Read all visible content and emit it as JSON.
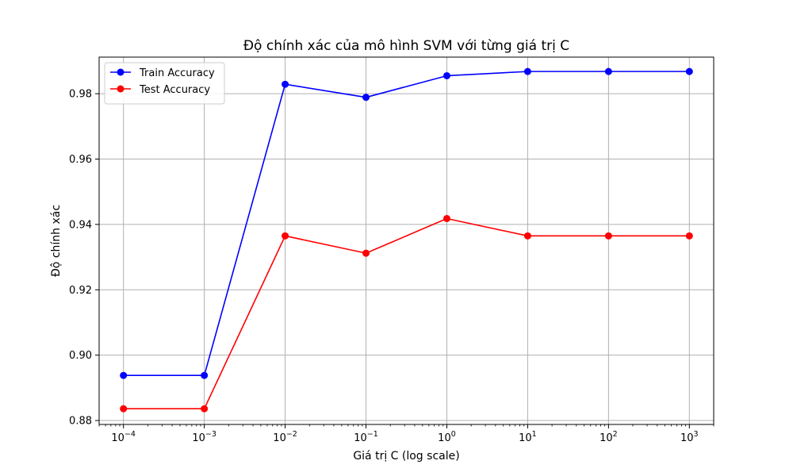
{
  "chart_data": {
    "type": "line",
    "title": "Độ chính xác của mô hình SVM với từng giá trị C",
    "xlabel": "Giá trị C (log scale)",
    "ylabel": "Độ chính xác",
    "x_scale": "log",
    "x": [
      0.0001,
      0.001,
      0.01,
      0.1,
      1,
      10,
      100,
      1000
    ],
    "x_tick_labels": [
      {
        "base": "10",
        "exp": "−4"
      },
      {
        "base": "10",
        "exp": "−3"
      },
      {
        "base": "10",
        "exp": "−2"
      },
      {
        "base": "10",
        "exp": "−1"
      },
      {
        "base": "10",
        "exp": "0"
      },
      {
        "base": "10",
        "exp": "1"
      },
      {
        "base": "10",
        "exp": "2"
      },
      {
        "base": "10",
        "exp": "3"
      }
    ],
    "xlim": [
      5e-05,
      2000
    ],
    "ylim": [
      0.8788,
      0.9912
    ],
    "y_ticks": [
      0.88,
      0.9,
      0.92,
      0.94,
      0.96,
      0.98
    ],
    "y_tick_labels": [
      "0.88",
      "0.90",
      "0.92",
      "0.94",
      "0.96",
      "0.98"
    ],
    "grid": true,
    "legend_position": "top-left",
    "series": [
      {
        "name": "Train Accuracy",
        "color": "#0000ff",
        "marker": "circle",
        "values": [
          0.8938,
          0.8938,
          0.9829,
          0.9789,
          0.9855,
          0.9868,
          0.9868,
          0.9868
        ]
      },
      {
        "name": "Test Accuracy",
        "color": "#ff0000",
        "marker": "circle",
        "values": [
          0.8836,
          0.8836,
          0.9365,
          0.9312,
          0.9418,
          0.9365,
          0.9365,
          0.9365
        ]
      }
    ]
  }
}
